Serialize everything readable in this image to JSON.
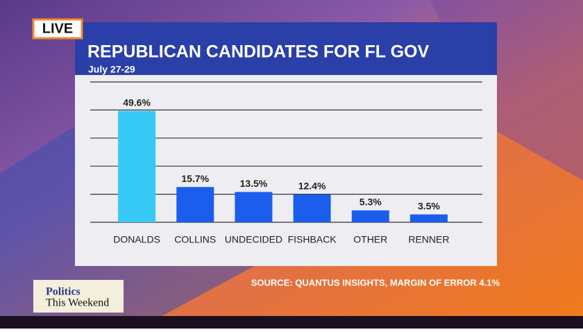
{
  "live": "LIVE",
  "show": {
    "line1": "Politics",
    "line2": "This Weekend"
  },
  "chart_data": {
    "type": "bar",
    "title": "REPUBLICAN CANDIDATES FOR FL GOV",
    "subtitle": "July 27-29",
    "categories": [
      "DONALDS",
      "COLLINS",
      "UNDECIDED",
      "FISHBACK",
      "OTHER",
      "RENNER"
    ],
    "values": [
      49.6,
      15.7,
      13.5,
      12.4,
      5.3,
      3.5
    ],
    "value_labels": [
      "49.6%",
      "15.7%",
      "13.5%",
      "12.4%",
      "5.3%",
      "3.5%"
    ],
    "colors": [
      "#36c9f6",
      "#1b5eee",
      "#1b5eee",
      "#1b5eee",
      "#1b5eee",
      "#1b5eee"
    ],
    "ylim": [
      0,
      62.5
    ],
    "yticks": [
      0,
      12.5,
      25,
      37.5,
      50,
      62.5
    ],
    "grid": true,
    "source": "SOURCE: QUANTUS INSIGHTS, MARGIN OF ERROR 4.1%"
  }
}
